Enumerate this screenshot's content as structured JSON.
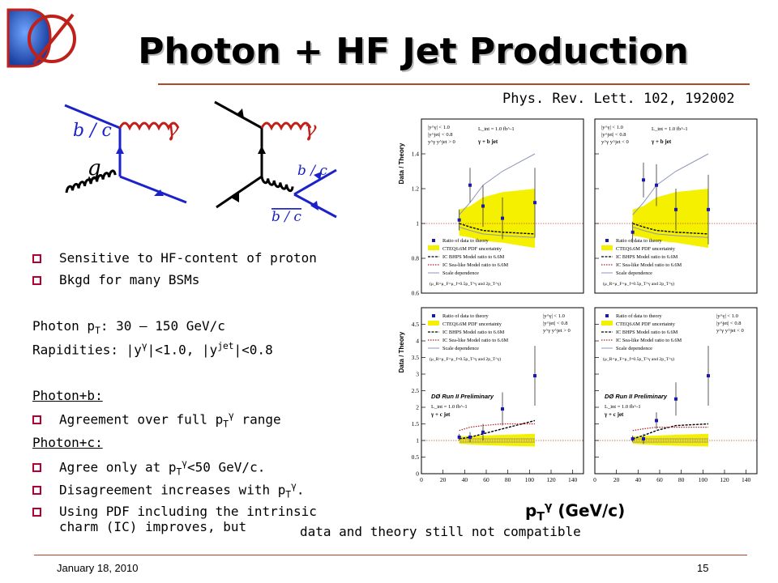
{
  "logo": {
    "text": "DØ"
  },
  "slide": {
    "title": "Photon + HF Jet Production",
    "reference": "Phys. Rev. Lett. 102, 192002",
    "footer_date": "January 18, 2010",
    "page_number": "15"
  },
  "diagrams": {
    "left": {
      "quark_label": "b / c",
      "photon_label": "γ",
      "gluon_label": "g"
    },
    "right": {
      "photon_label": "γ",
      "quark_label": "b / c",
      "antiquark_label": "b / c"
    }
  },
  "bullets": [
    {
      "text": "Sensitive to HF-content of proton"
    },
    {
      "text": "Bkgd for many BSMs"
    }
  ],
  "kinematics": {
    "pt_prefix": "Photon p",
    "pt_sub": "T",
    "pt_value": ": 30 – 150 GeV/c",
    "rap_prefix": "Rapidities: |y",
    "rap_sup1": "γ",
    "rap_mid": "|<1.0, |y",
    "rap_sup2": "jet",
    "rap_value": "|<0.8"
  },
  "photon_b": {
    "heading": "Photon+b:",
    "bullet_prefix": "Agreement over full p",
    "bullet_sub": "T",
    "bullet_sup": "γ",
    "bullet_suffix": " range"
  },
  "photon_c": {
    "heading": "Photon+c:",
    "b1_prefix": "Agree only at p",
    "b1_sub": "T",
    "b1_sup": "γ",
    "b1_suffix": "<50 GeV/c.",
    "b2_prefix": "Disagreement increases with p",
    "b2_sub": "T",
    "b2_sup": "γ",
    "b2_suffix": ".",
    "b3_line1": "Using PDF including the intrinsic",
    "b3_line2": "charm (IC) improves, but"
  },
  "footnote": "data and theory still not compatible",
  "x_title": {
    "prefix": "p",
    "sub": "T",
    "sup": "γ",
    "suffix": " (GeV/c)"
  },
  "colors": {
    "accent_rule": "#b04a22",
    "bullet": "#b30033",
    "pdf_band": "#f5f000",
    "data": "#1a1aa8",
    "ic_sea": "#b02020",
    "scale": "#8f95b8"
  },
  "chart_data": [
    {
      "type": "scatter",
      "panel": "top-left",
      "ylabel": "Data / Theory",
      "xlim": [
        0,
        150
      ],
      "ylim": [
        0.6,
        1.6
      ],
      "yticks": [
        0.6,
        0.8,
        1,
        1.2,
        1.4
      ],
      "xticks": [],
      "cut_text": [
        "|y^γ| < 1.0",
        "|y^jet| < 0.8",
        "y^γ y^jet > 0"
      ],
      "lumi_text": "L_int = 1.0 fb^-1",
      "process_text": "γ + b jet",
      "legend": [
        "Ratio of data to theory",
        "CTEQ6.6M PDF uncertainty",
        "IC BHPS Model ratio to 6.6M",
        "IC Sea-like Model ratio to 6.6M",
        "Scale dependence"
      ],
      "scale_note": "(μ_R=μ_F=μ_f=0.5p_T^γ and 2p_T^γ)",
      "x": [
        35,
        45,
        57,
        75,
        105
      ],
      "values": [
        1.02,
        1.22,
        1.1,
        1.03,
        1.12
      ],
      "errors": [
        0.06,
        0.1,
        0.12,
        0.12,
        0.2
      ],
      "band_lower": [
        0.93,
        0.92,
        0.9,
        0.89,
        0.86
      ],
      "band_upper": [
        1.08,
        1.1,
        1.15,
        1.18,
        1.2
      ],
      "bhps": [
        1.0,
        0.98,
        0.96,
        0.95,
        0.94
      ],
      "scale_upper": [
        1.05,
        1.12,
        1.22,
        1.3,
        1.4
      ],
      "scale_lower": [
        0.98,
        0.96,
        0.94,
        0.93,
        0.92
      ]
    },
    {
      "type": "scatter",
      "panel": "top-right",
      "xlim": [
        0,
        150
      ],
      "ylim": [
        0.6,
        1.6
      ],
      "yticks": [
        0.6,
        0.8,
        1,
        1.2,
        1.4
      ],
      "xticks": [],
      "cut_text": [
        "|y^γ| < 1.0",
        "|y^jet| < 0.8",
        "y^γ y^jet < 0"
      ],
      "lumi_text": "L_int = 1.0 fb^-1",
      "process_text": "γ + b jet",
      "legend": [
        "Ratio of data to theory",
        "CTEQ6.6M PDF uncertainty",
        "IC BHPS Model ratio to 6.6M",
        "IC Sea-like Model ratio to 6.6M",
        "Scale dependence"
      ],
      "scale_note": "(μ_R=μ_F=μ_f=0.5p_T^γ and 2p_T^γ)",
      "x": [
        35,
        45,
        57,
        75,
        105
      ],
      "values": [
        0.95,
        1.25,
        1.22,
        1.08,
        1.08
      ],
      "errors": [
        0.06,
        0.1,
        0.12,
        0.12,
        0.2
      ],
      "band_lower": [
        0.93,
        0.92,
        0.9,
        0.89,
        0.86
      ],
      "band_upper": [
        1.08,
        1.1,
        1.15,
        1.18,
        1.2
      ],
      "bhps": [
        1.0,
        0.98,
        0.96,
        0.95,
        0.94
      ],
      "scale_upper": [
        1.05,
        1.12,
        1.22,
        1.3,
        1.4
      ],
      "scale_lower": [
        0.98,
        0.96,
        0.94,
        0.93,
        0.92
      ]
    },
    {
      "type": "scatter",
      "panel": "bottom-left",
      "ylabel": "Data / Theory",
      "xlim": [
        0,
        150
      ],
      "ylim": [
        0,
        5
      ],
      "yticks": [
        0,
        0.5,
        1,
        1.5,
        2,
        2.5,
        3,
        3.5,
        4,
        4.5
      ],
      "xticks": [
        0,
        20,
        40,
        60,
        80,
        100,
        120,
        140
      ],
      "cut_text": [
        "|y^γ| < 1.0",
        "|y^jet| < 0.8",
        "y^γ y^jet > 0"
      ],
      "lumi_text": "L_int = 1.0 fb^-1",
      "process_text": "γ + c jet",
      "experiment_text": "DØ Run II Preliminary",
      "legend": [
        "Ratio of data to theory",
        "CTEQ6.6M PDF uncertainty",
        "IC BHPS Model ratio to 6.6M",
        "IC Sea-like Model ratio to 6.6M",
        "Scale dependence"
      ],
      "scale_note": "(μ_R=μ_F=μ_f=0.5p_T^γ and 2p_T^γ)",
      "x": [
        35,
        45,
        57,
        75,
        105
      ],
      "values": [
        1.1,
        1.1,
        1.25,
        1.95,
        2.95
      ],
      "errors": [
        0.1,
        0.15,
        0.25,
        0.5,
        0.9
      ],
      "band_lower": [
        0.9,
        0.88,
        0.86,
        0.84,
        0.82
      ],
      "band_upper": [
        1.12,
        1.13,
        1.15,
        1.17,
        1.2
      ],
      "bhps": [
        1.05,
        1.1,
        1.2,
        1.35,
        1.6
      ],
      "sea": [
        1.3,
        1.4,
        1.45,
        1.5,
        1.5
      ],
      "scale_upper": [
        1.05,
        1.05,
        1.05,
        1.05,
        1.05
      ],
      "scale_lower": [
        0.95,
        0.95,
        0.95,
        0.95,
        0.95
      ]
    },
    {
      "type": "scatter",
      "panel": "bottom-right",
      "xlim": [
        0,
        150
      ],
      "ylim": [
        0,
        5
      ],
      "yticks": [
        0,
        0.5,
        1,
        1.5,
        2,
        2.5,
        3,
        3.5,
        4,
        4.5
      ],
      "xticks": [
        0,
        20,
        40,
        60,
        80,
        100,
        120,
        140
      ],
      "cut_text": [
        "|y^γ| < 1.0",
        "|y^jet| < 0.8",
        "y^γ y^jet < 0"
      ],
      "lumi_text": "L_int = 1.0 fb^-1",
      "process_text": "γ + c jet",
      "experiment_text": "DØ Run II Preliminary",
      "legend": [
        "Ratio of data to theory",
        "CTEQ6.6M PDF uncertainty",
        "IC BHPS Model ratio to 6.6M",
        "IC Sea-like Model ratio to 6.6M",
        "Scale dependence"
      ],
      "scale_note": "(μ_R=μ_F=μ_f=0.5p_T^γ and 2p_T^γ)",
      "x": [
        35,
        45,
        57,
        75,
        105
      ],
      "values": [
        1.05,
        1.05,
        1.6,
        2.25,
        2.95
      ],
      "errors": [
        0.1,
        0.15,
        0.25,
        0.5,
        0.9
      ],
      "band_lower": [
        0.9,
        0.88,
        0.86,
        0.84,
        0.82
      ],
      "band_upper": [
        1.12,
        1.13,
        1.15,
        1.17,
        1.2
      ],
      "bhps": [
        1.05,
        1.15,
        1.3,
        1.45,
        1.5
      ],
      "sea": [
        1.3,
        1.35,
        1.4,
        1.4,
        1.4
      ],
      "scale_upper": [
        1.05,
        1.05,
        1.05,
        1.05,
        1.05
      ],
      "scale_lower": [
        0.95,
        0.95,
        0.95,
        0.95,
        0.95
      ]
    }
  ]
}
